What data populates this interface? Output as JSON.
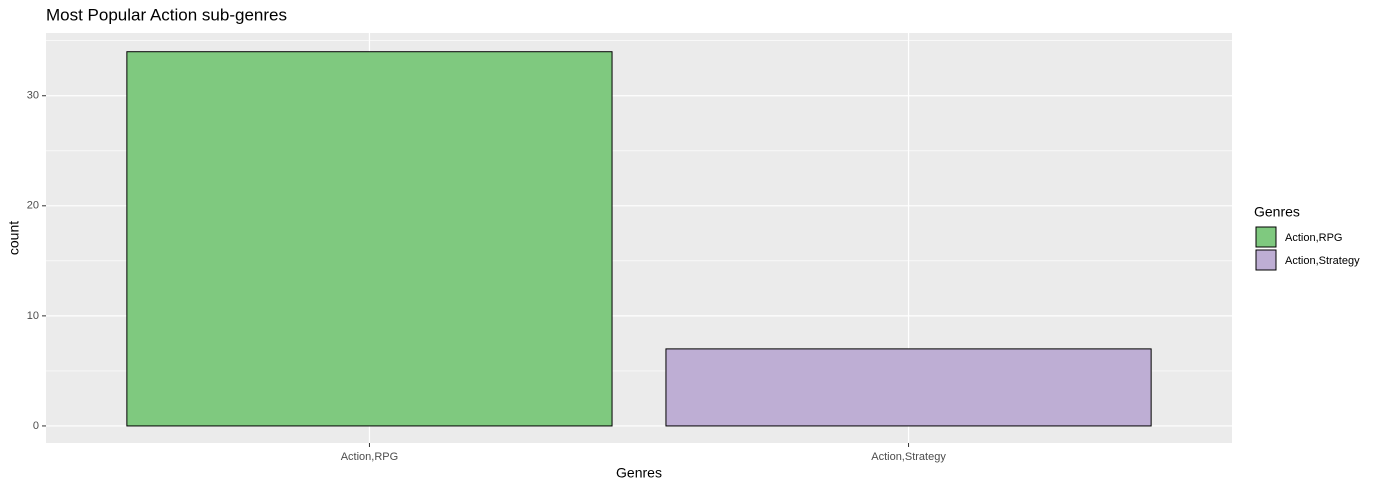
{
  "chart_data": {
    "type": "bar",
    "title": "Most Popular Action sub-genres",
    "x_label": "Genres",
    "y_label": "count",
    "categories": [
      "Action,RPG",
      "Action,Strategy"
    ],
    "values": [
      34,
      7
    ],
    "colors": [
      "#7fc97f",
      "#beaed4"
    ],
    "ylim": [
      -1.55,
      35.7
    ],
    "yticks": [
      0,
      10,
      20,
      30
    ],
    "y_minor_ticks": [
      5,
      15,
      25,
      35
    ],
    "grid": true,
    "legend_title": "Genres",
    "legend_position": "right"
  }
}
